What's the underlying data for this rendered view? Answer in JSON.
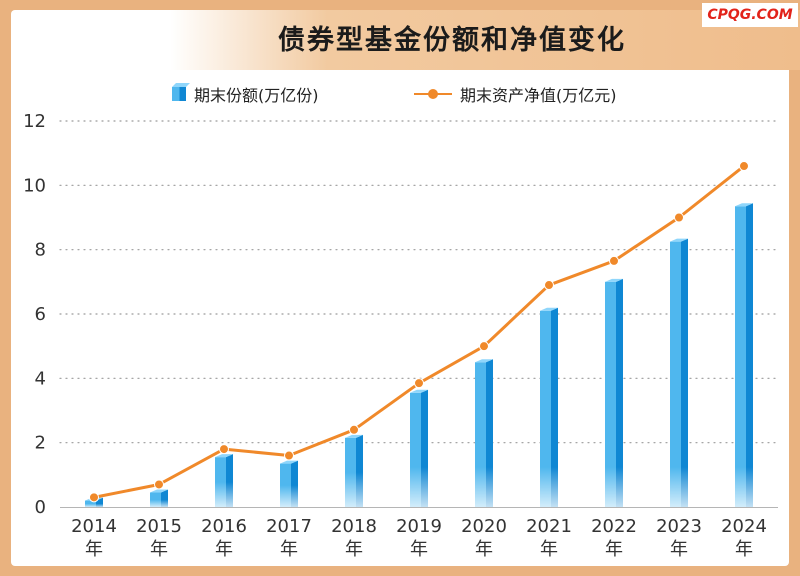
{
  "title": "债券型基金份额和净值变化",
  "brand": "CPQG.COM",
  "colors": {
    "border": "#e9b27f",
    "bar_light": "#4fb7ee",
    "bar_dark": "#0f87d3",
    "bar_top": "#8fd6fb",
    "line": "#f0892a",
    "grid": "#9a9a9a"
  },
  "chart_data": {
    "type": "bar",
    "title": "债券型基金份额和净值变化",
    "categories": [
      "2014",
      "2015",
      "2016",
      "2017",
      "2018",
      "2019",
      "2020",
      "2021",
      "2022",
      "2023",
      "2024"
    ],
    "category_suffix": "年",
    "series": [
      {
        "name": "期末份额(万亿份)",
        "type": "bar",
        "values": [
          0.2,
          0.45,
          1.55,
          1.35,
          2.15,
          3.55,
          4.5,
          6.1,
          7.0,
          8.25,
          9.35
        ]
      },
      {
        "name": "期末资产净值(万亿元)",
        "type": "line",
        "values": [
          0.3,
          0.7,
          1.8,
          1.6,
          2.4,
          3.85,
          5.0,
          6.9,
          7.65,
          9.0,
          10.6
        ]
      }
    ],
    "yticks": [
      0,
      2,
      4,
      6,
      8,
      10,
      12
    ],
    "ylim": [
      0,
      12
    ],
    "grid": true,
    "legend": "top"
  }
}
